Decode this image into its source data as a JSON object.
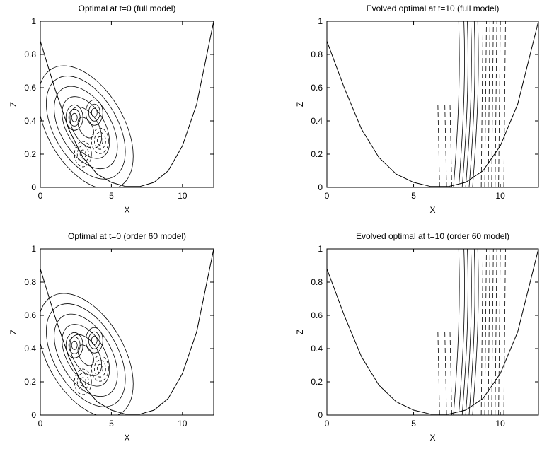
{
  "chart_data": [
    {
      "type": "contour",
      "title": "Optimal at t=0 (full model)",
      "xlabel": "X",
      "ylabel": "Z",
      "xlim": [
        0,
        12.2
      ],
      "ylim": [
        0,
        1
      ],
      "xticks": [
        0,
        5,
        10
      ],
      "yticks": [
        0,
        0.2,
        0.4,
        0.6,
        0.8,
        1
      ],
      "x": [
        0,
        1,
        2,
        3,
        4,
        5,
        6,
        7,
        8,
        9,
        10,
        11,
        12.2
      ],
      "values": [
        0.88,
        0.6,
        0.35,
        0.18,
        0.08,
        0.03,
        0.005,
        0.005,
        0.03,
        0.1,
        0.25,
        0.5,
        1.0
      ]
    },
    {
      "type": "contour",
      "title": "Evolved optimal at  t=10 (full model)",
      "xlabel": "X",
      "ylabel": "Z",
      "xlim": [
        0,
        12.2
      ],
      "ylim": [
        0,
        1
      ],
      "xticks": [
        0,
        5,
        10
      ],
      "yticks": [
        0,
        0.2,
        0.4,
        0.6,
        0.8,
        1
      ],
      "x": [
        0,
        1,
        2,
        3,
        4,
        5,
        6,
        7,
        8,
        9,
        10,
        11,
        12.2
      ],
      "values": [
        0.88,
        0.6,
        0.35,
        0.18,
        0.08,
        0.03,
        0.005,
        0.005,
        0.03,
        0.1,
        0.25,
        0.5,
        1.0
      ]
    },
    {
      "type": "contour",
      "title": "Optimal at  t=0  (order 60 model)",
      "xlabel": "X",
      "ylabel": "Z",
      "xlim": [
        0,
        12.2
      ],
      "ylim": [
        0,
        1
      ],
      "xticks": [
        0,
        5,
        10
      ],
      "yticks": [
        0,
        0.2,
        0.4,
        0.6,
        0.8,
        1
      ],
      "x": [
        0,
        1,
        2,
        3,
        4,
        5,
        6,
        7,
        8,
        9,
        10,
        11,
        12.2
      ],
      "values": [
        0.88,
        0.6,
        0.35,
        0.18,
        0.08,
        0.03,
        0.005,
        0.005,
        0.03,
        0.1,
        0.25,
        0.5,
        1.0
      ]
    },
    {
      "type": "contour",
      "title": "Evolved optimal at t=10 (order 60 model)",
      "xlabel": "X",
      "ylabel": "Z",
      "xlim": [
        0,
        12.2
      ],
      "ylim": [
        0,
        1
      ],
      "xticks": [
        0,
        5,
        10
      ],
      "yticks": [
        0,
        0.2,
        0.4,
        0.6,
        0.8,
        1
      ],
      "x": [
        0,
        1,
        2,
        3,
        4,
        5,
        6,
        7,
        8,
        9,
        10,
        11,
        12.2
      ],
      "values": [
        0.88,
        0.6,
        0.35,
        0.18,
        0.08,
        0.03,
        0.005,
        0.005,
        0.03,
        0.1,
        0.25,
        0.5,
        1.0
      ]
    }
  ]
}
